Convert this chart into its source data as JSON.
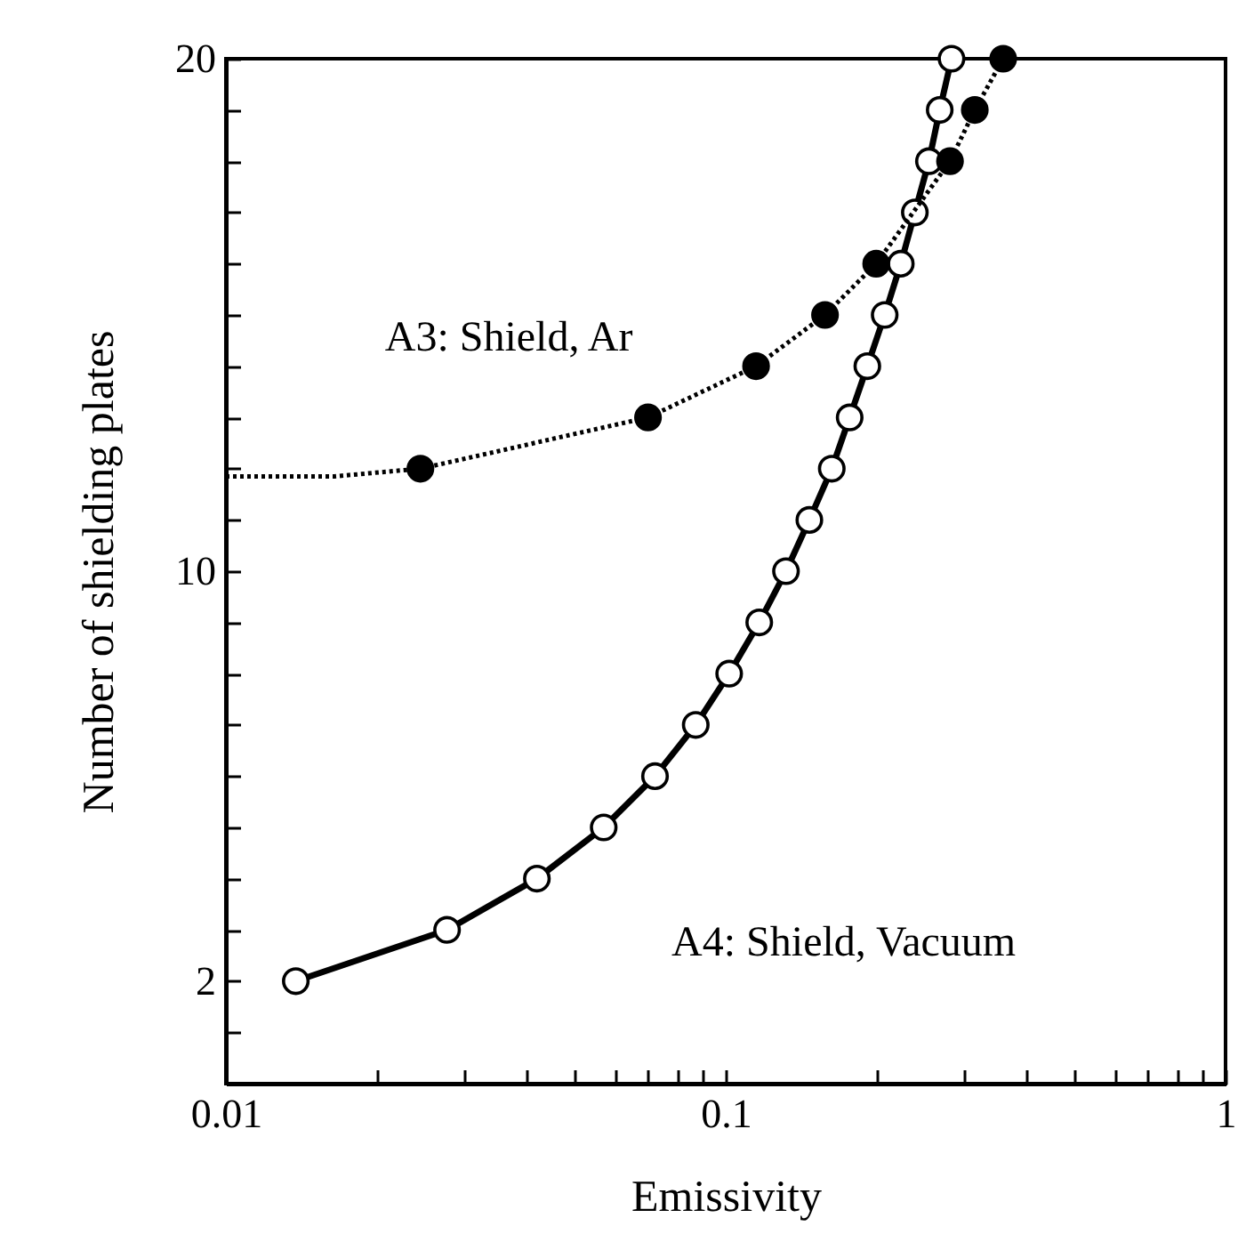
{
  "chart_data": {
    "type": "line",
    "xlabel": "Emissivity",
    "ylabel": "Number of shielding plates",
    "log": "x",
    "grid": false,
    "xlim": [
      0.01,
      1
    ],
    "xticks": [
      0.01,
      {
        "value": 0.02,
        "label": null
      },
      {
        "value": 0.03,
        "label": null
      },
      {
        "value": 0.04,
        "label": null
      },
      {
        "value": 0.05,
        "label": null
      },
      {
        "value": 0.06,
        "label": null
      },
      {
        "value": 0.07,
        "label": null
      },
      {
        "value": 0.08,
        "label": null
      },
      {
        "value": 0.09,
        "label": null
      },
      0.1,
      {
        "value": 0.2,
        "label": null
      },
      {
        "value": 0.3,
        "label": null
      },
      {
        "value": 0.4,
        "label": null
      },
      {
        "value": 0.5,
        "label": null
      },
      {
        "value": 0.6,
        "label": null
      },
      {
        "value": 0.7,
        "label": null
      },
      {
        "value": 0.8,
        "label": null
      },
      {
        "value": 0.9,
        "label": null
      },
      1
    ],
    "ylim": [
      0,
      20
    ],
    "yticks": [
      {
        "value": 1,
        "label": null
      },
      2,
      {
        "value": 3,
        "label": null
      },
      {
        "value": 4,
        "label": null
      },
      {
        "value": 5,
        "label": null
      },
      {
        "value": 6,
        "label": null
      },
      {
        "value": 7,
        "label": null
      },
      {
        "value": 8,
        "label": null
      },
      {
        "value": 9,
        "label": null
      },
      10,
      {
        "value": 11,
        "label": null
      },
      {
        "value": 12,
        "label": null
      },
      {
        "value": 13,
        "label": null
      },
      {
        "value": 14,
        "label": null
      },
      {
        "value": 15,
        "label": null
      },
      {
        "value": 16,
        "label": null
      },
      {
        "value": 17,
        "label": null
      },
      {
        "value": 18,
        "label": null
      },
      {
        "value": 19,
        "label": null
      },
      20
    ],
    "series": [
      {
        "color": "#000000",
        "marker": "circle",
        "line_style": "solid",
        "x": [
          0.0138,
          0.0277,
          0.0419,
          0.057,
          0.0722,
          0.0871,
          0.1016,
          0.1167,
          0.132,
          0.147,
          0.163,
          0.177,
          0.192,
          0.208,
          0.224,
          0.239,
          0.255,
          0.268,
          0.283
        ],
        "values": [
          2,
          3,
          4,
          5,
          6,
          7,
          8,
          9,
          10,
          11,
          12,
          13,
          14,
          15,
          16,
          17,
          18,
          19,
          20
        ]
      },
      {
        "color": "#000000",
        "marker": "none",
        "line_style": "dotted",
        "x": [
          0.01,
          0.0165,
          0.0245
        ],
        "values": [
          11.85,
          11.85,
          12
        ]
      },
      {
        "color": "#000000",
        "marker": "circle",
        "line_style": "dotted",
        "x": [
          0.0245,
          0.0699,
          0.115,
          0.158,
          0.2,
          0.281,
          0.315,
          0.359
        ],
        "values": [
          12,
          13,
          14,
          15,
          16,
          18,
          19,
          20
        ]
      }
    ],
    "annotations": [
      "A3: Shield, Ar",
      "A4: Shield, Vacuum"
    ]
  }
}
